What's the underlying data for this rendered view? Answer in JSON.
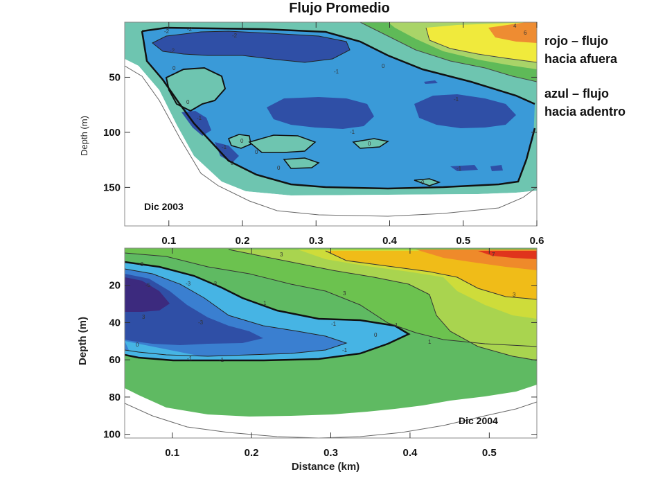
{
  "title": "Flujo Promedio",
  "legend": {
    "outflow": [
      "rojo – flujo",
      "hacia afuera"
    ],
    "inflow": [
      "azul – flujo",
      "hacia adentro"
    ],
    "colors": {
      "outflow": "#e53a1f",
      "inflow": "#2e4fa8"
    }
  },
  "chart_data": [
    {
      "type": "heatmap",
      "panel_label": "Dic 2003",
      "ylabel": "Depth (m)",
      "xlim": [
        0.04,
        0.6
      ],
      "ylim": [
        185,
        0
      ],
      "x_ticks": [
        0.1,
        0.2,
        0.3,
        0.4,
        0.5,
        0.6
      ],
      "x_tick_labels": [
        "0.1",
        "0.2",
        "0.3",
        "0.4",
        "0.5",
        "0.6"
      ],
      "y_ticks": [
        50,
        100,
        150
      ],
      "y_tick_labels": [
        "50",
        "100",
        "150"
      ],
      "contour_labels": [
        "-2",
        "-2",
        "-2",
        "-2",
        "-1",
        "0",
        "0",
        "0",
        "-1",
        "-1",
        "-1",
        "0",
        "0",
        "0",
        "-1",
        "0",
        "0",
        "-1",
        "0",
        "6",
        "4"
      ],
      "color_scale": {
        "negative": "inflow (blue)",
        "positive": "outflow (red)"
      }
    },
    {
      "type": "heatmap",
      "panel_label": "Dic 2004",
      "xlabel": "Distance (km)",
      "ylabel": "Depth (m)",
      "xlim": [
        0.04,
        0.56
      ],
      "ylim": [
        102,
        0
      ],
      "x_ticks": [
        0.1,
        0.2,
        0.3,
        0.4,
        0.5
      ],
      "x_tick_labels": [
        "0.1",
        "0.2",
        "0.3",
        "0.4",
        "0.5"
      ],
      "y_ticks": [
        20,
        40,
        60,
        80,
        100
      ],
      "y_tick_labels": [
        "20",
        "40",
        "60",
        "80",
        "100"
      ],
      "contour_labels": [
        "-3",
        "-5",
        "-3",
        "-3",
        "-1",
        "1",
        "3",
        "3",
        "3",
        "3",
        "0",
        "-1",
        "-1",
        "1",
        "1",
        "-3",
        "-1",
        "0",
        "7"
      ],
      "color_scale": {
        "negative": "inflow (blue)",
        "positive": "outflow (red)"
      }
    }
  ]
}
